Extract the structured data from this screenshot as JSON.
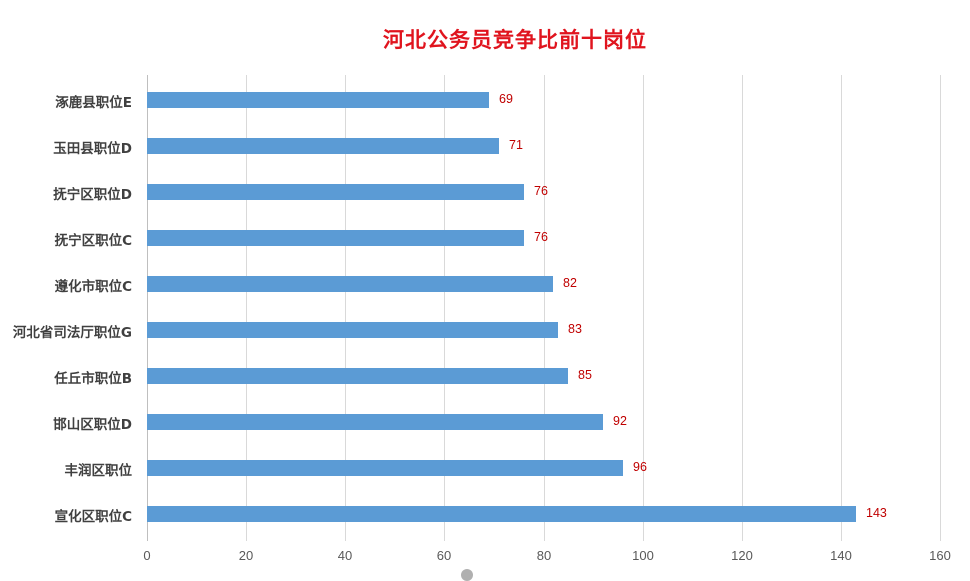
{
  "chart_data": {
    "type": "bar",
    "orientation": "horizontal",
    "title": "河北公务员竞争比前十岗位",
    "xlabel": "",
    "ylabel": "",
    "xlim": [
      0,
      160
    ],
    "x_ticks": [
      "0",
      "20",
      "40",
      "60",
      "80",
      "100",
      "120",
      "140",
      "160"
    ],
    "grid": true,
    "legend": null,
    "bar_color": "#5b9bd5",
    "label_color": "#c00000",
    "title_color": "#e0141e",
    "categories": [
      "涿鹿县职位E",
      "玉田县职位D",
      "抚宁区职位D",
      "抚宁区职位C",
      "遵化市职位C",
      "河北省司法厅职位G",
      "任丘市职位B",
      "邯山区职位D",
      "丰润区职位",
      "宣化区职位C"
    ],
    "values": [
      69,
      71,
      76,
      76,
      82,
      83,
      85,
      92,
      96,
      143
    ]
  },
  "labels": {
    "title": "河北公务员竞争比前十岗位",
    "ticks": [
      "0",
      "20",
      "40",
      "60",
      "80",
      "100",
      "120",
      "140",
      "160"
    ],
    "rows": [
      {
        "name": "涿鹿县职位E",
        "value": "69"
      },
      {
        "name": "玉田县职位D",
        "value": "71"
      },
      {
        "name": "抚宁区职位D",
        "value": "76"
      },
      {
        "name": "抚宁区职位C",
        "value": "76"
      },
      {
        "name": "遵化市职位C",
        "value": "82"
      },
      {
        "name": "河北省司法厅职位G",
        "value": "83"
      },
      {
        "name": "任丘市职位B",
        "value": "85"
      },
      {
        "name": "邯山区职位D",
        "value": "92"
      },
      {
        "name": "丰润区职位",
        "value": "96"
      },
      {
        "name": "宣化区职位C",
        "value": "143"
      }
    ]
  }
}
